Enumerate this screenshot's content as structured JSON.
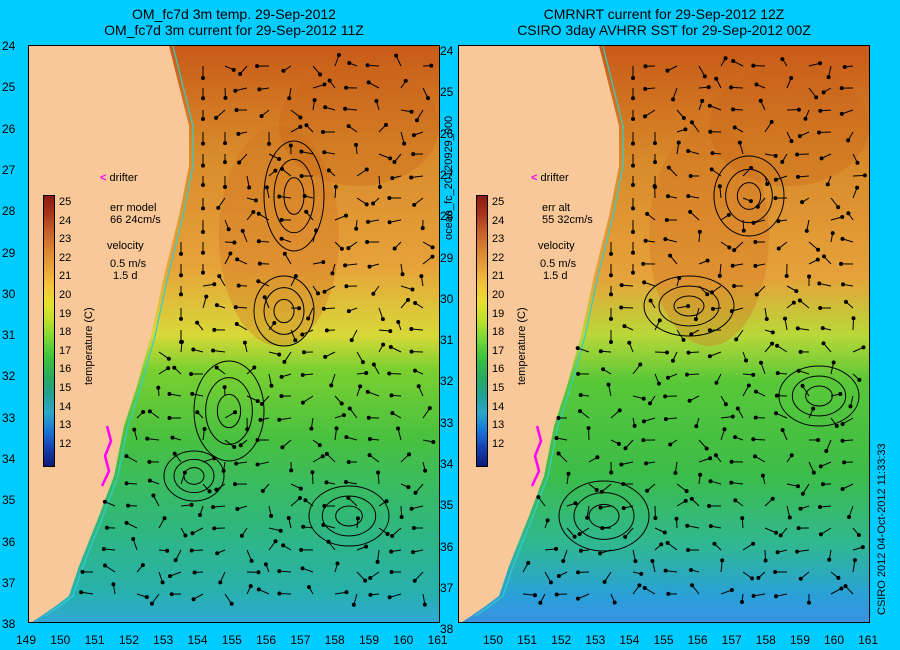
{
  "left_panel": {
    "title_line1": "OM_fc7d 3m temp. 29-Sep-2012",
    "title_line2": "OM_fc7d 3m current for 29-Sep-2012 11Z",
    "err_label": "err model",
    "err_value": "66 24cm/s",
    "colorbar_title": "temperature (C)"
  },
  "right_panel": {
    "title_line1": "CMRNRT current for 29-Sep-2012 12Z",
    "title_line2": "CSIRO 3day AVHRR SST for 29-Sep-2012 00Z",
    "err_label": "err alt",
    "err_value": "55 32cm/s",
    "colorbar_title": "temperature (C)"
  },
  "legend": {
    "drifter_symbol": "<",
    "drifter_label": "drifter",
    "velocity_label": "velocity",
    "velocity_scale": "0.5 m/s",
    "velocity_time": "1.5 d"
  },
  "center_label": "ocean_fc_20120929_000",
  "credit": "CSIRO 2012  04-Oct-2012 11:33:33",
  "latitude_labels": [
    "24",
    "25",
    "26",
    "27",
    "28",
    "29",
    "30",
    "31",
    "32",
    "33",
    "34",
    "35",
    "36",
    "37",
    "38"
  ],
  "longitude_labels_left": [
    "149",
    "150",
    "151",
    "152",
    "153",
    "154",
    "155",
    "156",
    "157",
    "158",
    "159",
    "160",
    "161"
  ],
  "longitude_labels_right": [
    "150",
    "151",
    "152",
    "153",
    "154",
    "155",
    "156",
    "157",
    "158",
    "159",
    "160",
    "161"
  ],
  "colorbar_ticks": [
    "25",
    "24",
    "23",
    "22",
    "21",
    "20",
    "19",
    "18",
    "17",
    "16",
    "15",
    "14",
    "13",
    "12"
  ],
  "colors": {
    "background": "#00ccff",
    "land": "#f8c898",
    "coast": "#33cccc",
    "drifter": "#ff00ff"
  }
}
